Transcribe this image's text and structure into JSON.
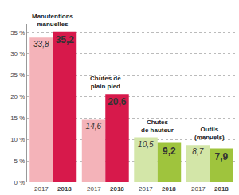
{
  "chart_data": {
    "type": "bar",
    "categories": [
      "Manutentions\nmanuelles",
      "Chutes de\nplain pied",
      "Chutes\nde hauteur",
      "Outils\n(manuels)"
    ],
    "series": [
      {
        "name": "2017",
        "colors": [
          "#f4b3b9",
          "#f4b3b9",
          "#d3e6a8",
          "#d3e6a8"
        ],
        "values": [
          33.8,
          14.6,
          10.5,
          8.7
        ],
        "value_labels": [
          "33,8",
          "14,6",
          "10,5",
          "8,7"
        ]
      },
      {
        "name": "2018",
        "colors": [
          "#d7194b",
          "#d7194b",
          "#9fc43d",
          "#9fc43d"
        ],
        "values": [
          35.2,
          20.6,
          9.2,
          7.9
        ],
        "value_labels": [
          "35,2",
          "20,6",
          "9,2",
          "7,9"
        ]
      }
    ],
    "ylim": [
      0,
      37
    ],
    "yticks": [
      {
        "value": 0,
        "label": "0 %"
      },
      {
        "value": 5,
        "label": "5 %"
      },
      {
        "value": 10,
        "label": "10 %"
      },
      {
        "value": 15,
        "label": "15 %"
      },
      {
        "value": 20,
        "label": "20 %"
      },
      {
        "value": 25,
        "label": "25 %"
      },
      {
        "value": 30,
        "label": "30 %"
      },
      {
        "value": 35,
        "label": "35 %"
      }
    ],
    "grid": true,
    "data_labels": true,
    "tick_labels": "y"
  }
}
